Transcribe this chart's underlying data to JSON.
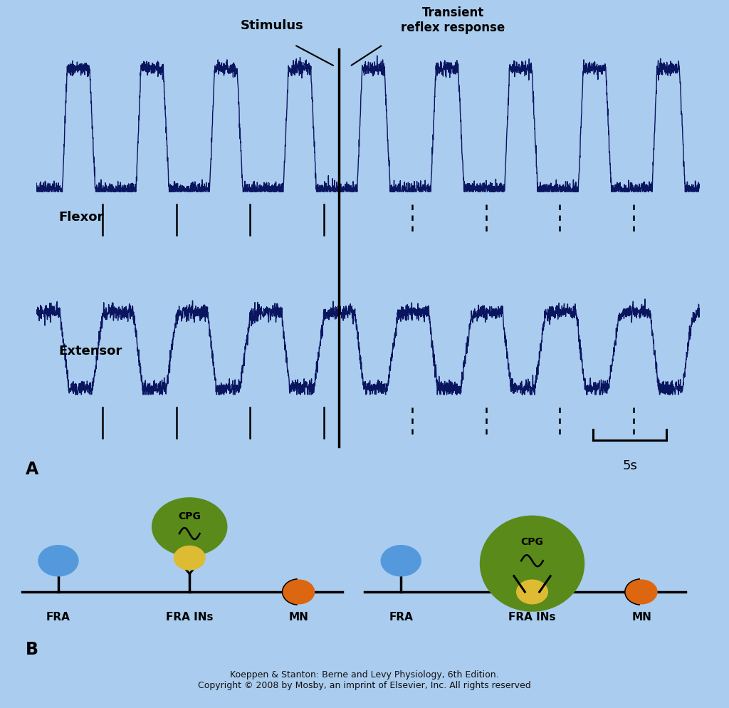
{
  "fig_bg": "#aaccee",
  "panel_a_bg": "#fdf3d0",
  "panel_a_border_color": "#aaaaaa",
  "emg_color": "#0a1560",
  "text_color": "#000000",
  "flexor_label": "Flexor",
  "extensor_label": "Extensor",
  "stimulus_label": "Stimulus",
  "transient_label": "Transient\nreflex response",
  "scale_label": "5s",
  "label_A": "A",
  "label_B": "B",
  "footer_line1": "Koeppen & Stanton: Berne and Levy Physiology, 6th Edition.",
  "footer_line2": "Copyright © 2008 by Mosby, an imprint of Elsevier, Inc. All rights reserved",
  "cpg_color": "#5a8a1a",
  "cpg_label": "CPG",
  "fra_label": "FRA",
  "fra_ins_label": "FRA INs",
  "mn_label": "MN",
  "blue_ball_color": "#5599dd",
  "yellow_ball_color": "#ddbb33",
  "orange_ball_color": "#dd6611",
  "n_cycles": 9,
  "pts_per_cycle": 400,
  "stim_cycle": 4.1
}
